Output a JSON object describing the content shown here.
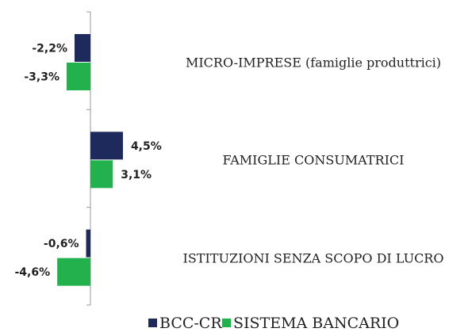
{
  "chart_data": {
    "type": "barh",
    "categories": [
      "MICRO-IMPRESE (famiglie produttrici)",
      "FAMIGLIE CONSUMATRICI",
      "ISTITUZIONI SENZA SCOPO DI LUCRO"
    ],
    "series": [
      {
        "name": "BCC-CR",
        "color": "#1f2a5c",
        "values": [
          -2.2,
          4.5,
          -0.6
        ],
        "value_labels": [
          "-2,2%",
          "4,5%",
          "-0,6%"
        ]
      },
      {
        "name": "SISTEMA BANCARIO",
        "color": "#22b14c",
        "values": [
          -3.3,
          3.1,
          -4.6
        ],
        "value_labels": [
          "-3,3%",
          "3,1%",
          "-4,6%"
        ]
      }
    ]
  }
}
